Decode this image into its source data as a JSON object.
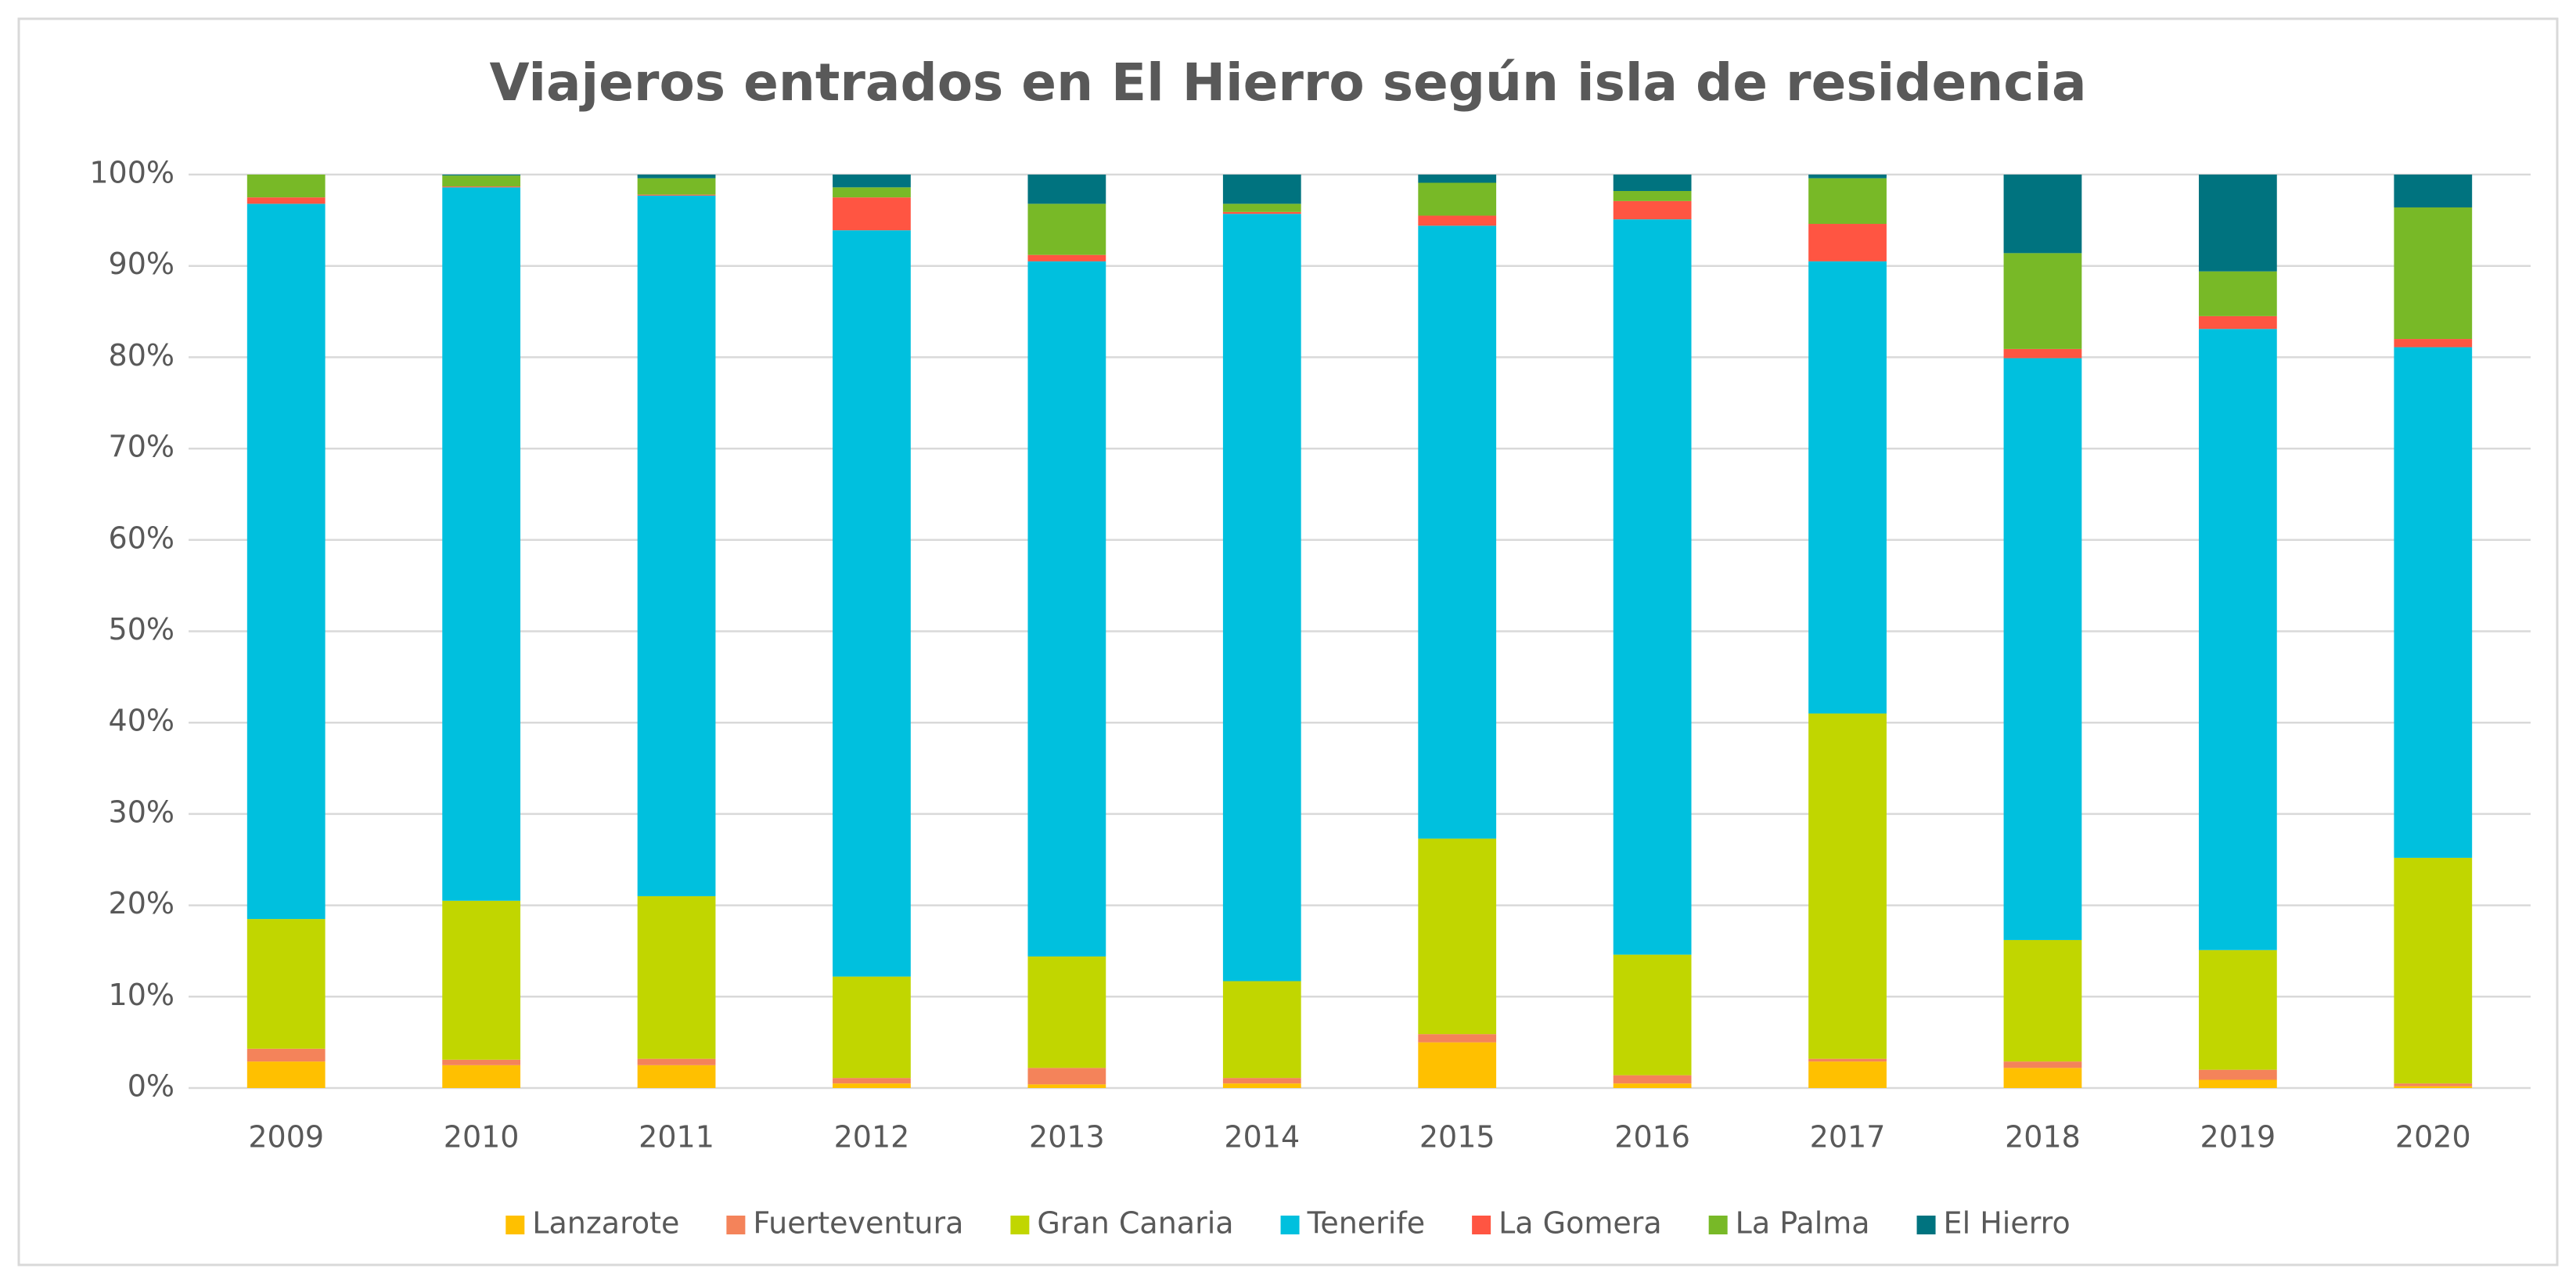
{
  "chart_data": {
    "type": "stacked_bar",
    "title": "Viajeros entrados en El Hierro según isla de residencia",
    "categories": [
      "2009",
      "2010",
      "2011",
      "2012",
      "2013",
      "2014",
      "2015",
      "2016",
      "2017",
      "2018",
      "2019",
      "2020"
    ],
    "series": [
      {
        "name": "Lanzarote",
        "color": "#ffc000",
        "values": [
          2.9,
          2.5,
          2.5,
          0.5,
          0.4,
          0.5,
          5.0,
          0.5,
          2.9,
          2.2,
          0.9,
          0.2
        ]
      },
      {
        "name": "Fuerteventura",
        "color": "#f4835a",
        "values": [
          1.4,
          0.6,
          0.7,
          0.6,
          1.8,
          0.6,
          0.9,
          0.9,
          0.3,
          0.7,
          1.1,
          0.3
        ]
      },
      {
        "name": "Gran Canaria",
        "color": "#c1d600",
        "values": [
          14.2,
          17.4,
          17.8,
          11.1,
          12.2,
          10.6,
          21.4,
          13.2,
          37.8,
          13.3,
          13.1,
          24.7
        ]
      },
      {
        "name": "Tenerife",
        "color": "#00c0de",
        "values": [
          78.3,
          78.1,
          76.7,
          81.7,
          76.1,
          84.0,
          67.1,
          80.5,
          49.5,
          63.7,
          68.0,
          55.9
        ]
      },
      {
        "name": "La Gomera",
        "color": "#ff5542",
        "values": [
          0.7,
          0.1,
          0.1,
          3.6,
          0.7,
          0.2,
          1.1,
          2.0,
          4.1,
          1.0,
          1.4,
          0.9
        ]
      },
      {
        "name": "La Palma",
        "color": "#78b927",
        "values": [
          2.5,
          1.2,
          1.8,
          1.1,
          5.6,
          0.9,
          3.6,
          1.1,
          5.0,
          10.5,
          4.9,
          14.4
        ]
      },
      {
        "name": "El Hierro",
        "color": "#00737f",
        "values": [
          0,
          0.1,
          0.4,
          1.4,
          3.2,
          3.2,
          0.9,
          1.8,
          0.4,
          8.6,
          10.6,
          3.6
        ]
      }
    ],
    "ylim": [
      0,
      100
    ],
    "yticks": [
      {
        "value": 0,
        "label": "0%"
      },
      {
        "value": 10,
        "label": "10%"
      },
      {
        "value": 20,
        "label": "20%"
      },
      {
        "value": 30,
        "label": "30%"
      },
      {
        "value": 40,
        "label": "40%"
      },
      {
        "value": 50,
        "label": "50%"
      },
      {
        "value": 60,
        "label": "60%"
      },
      {
        "value": 70,
        "label": "70%"
      },
      {
        "value": 80,
        "label": "80%"
      },
      {
        "value": 90,
        "label": "90%"
      },
      {
        "value": 100,
        "label": "100%"
      }
    ],
    "grid": true,
    "legend": "bottom"
  }
}
